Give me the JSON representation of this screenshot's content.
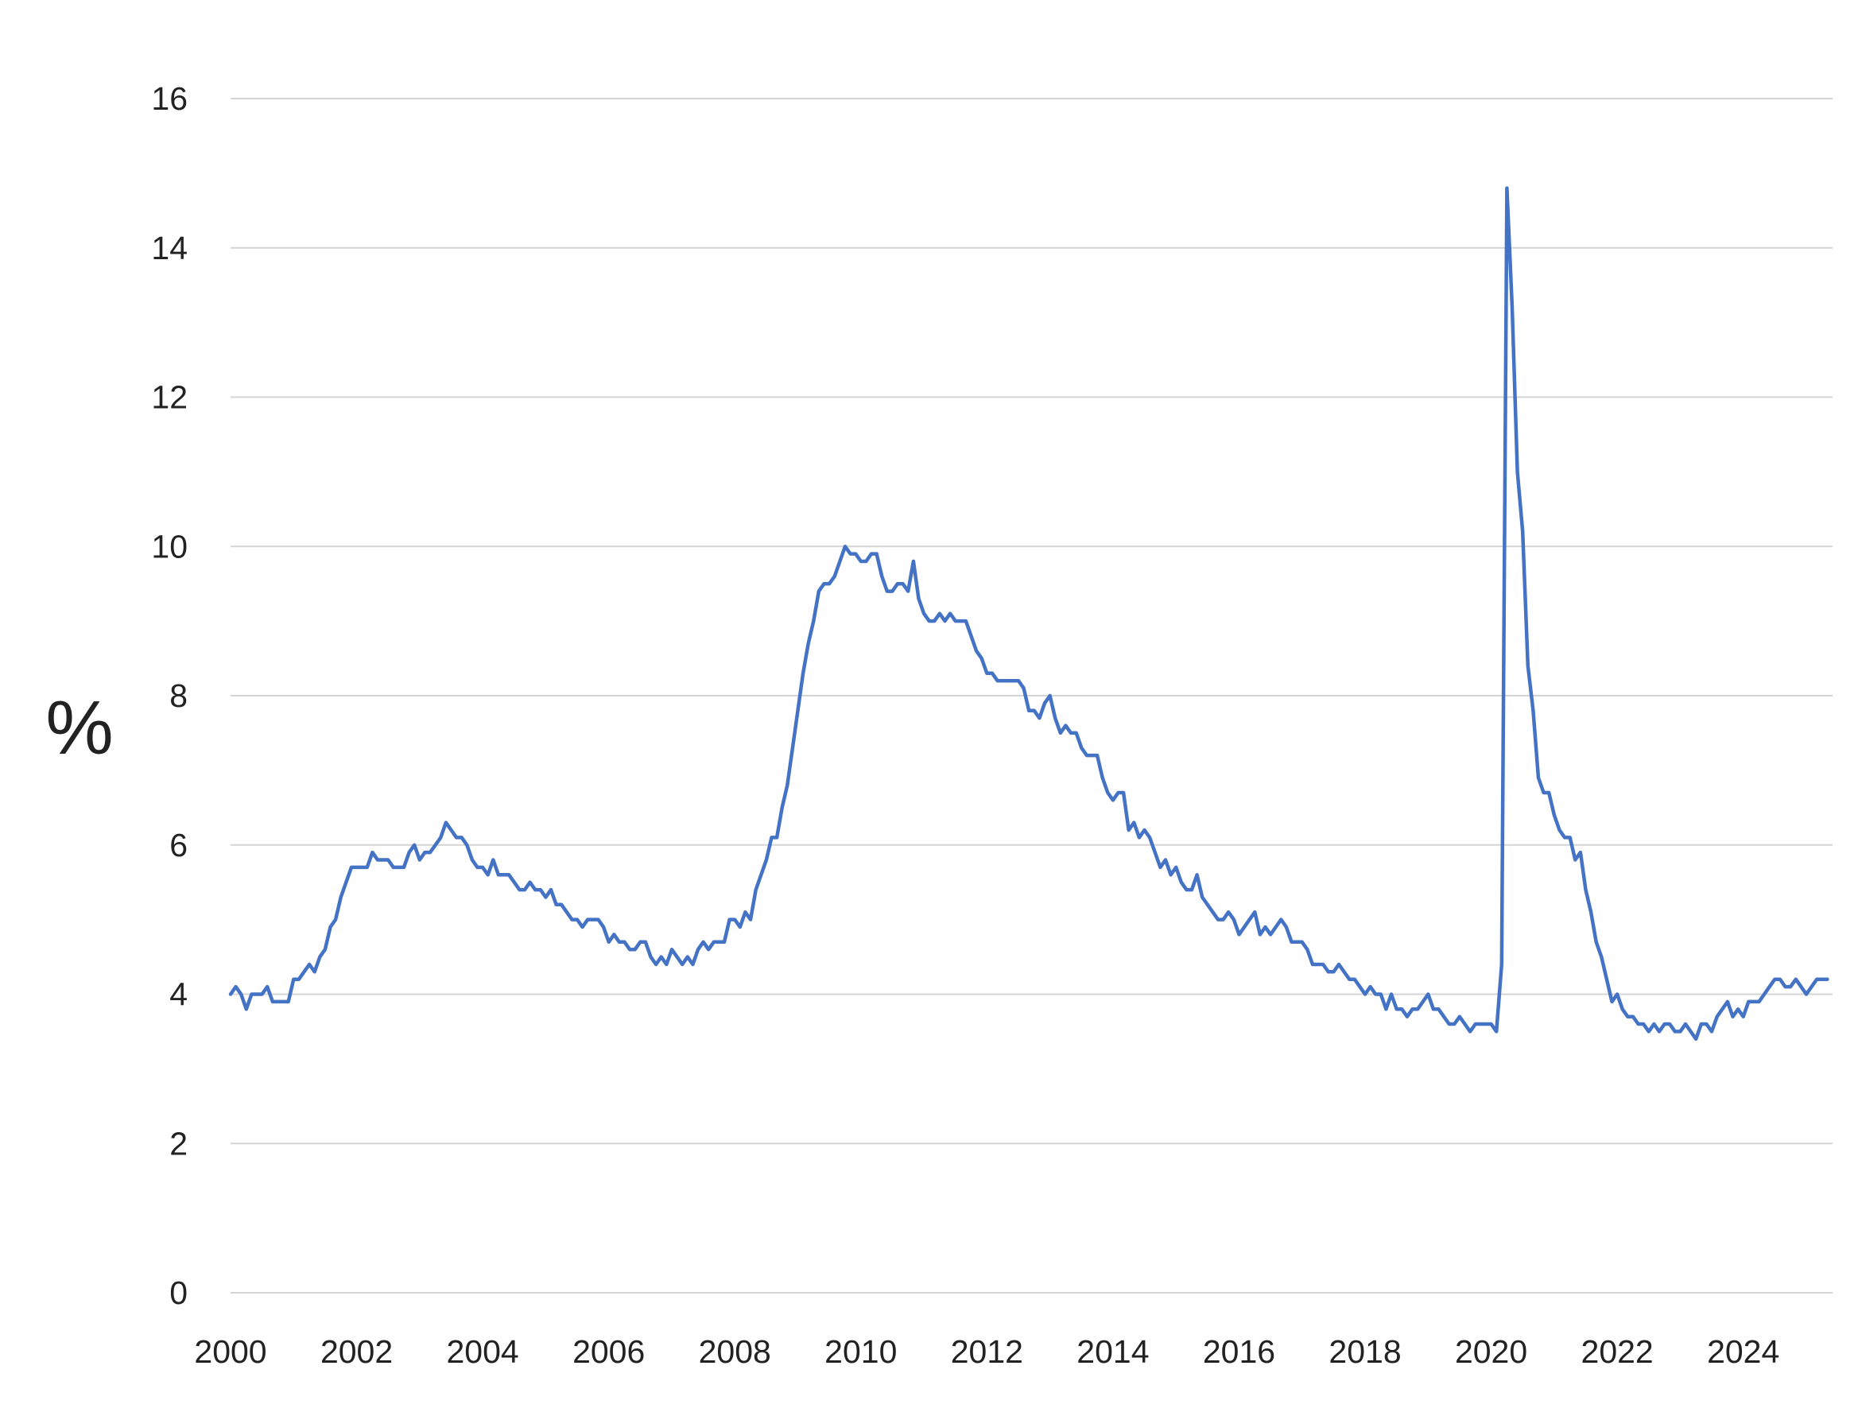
{
  "chart_data": {
    "type": "line",
    "ylabel": "%",
    "xlabel": "",
    "ylim": [
      0,
      16
    ],
    "xlim": [
      "2000-01",
      "2025-06"
    ],
    "yticks": [
      0,
      2,
      4,
      6,
      8,
      10,
      12,
      14,
      16
    ],
    "xticks": [
      "2000",
      "2002",
      "2004",
      "2006",
      "2008",
      "2010",
      "2012",
      "2014",
      "2016",
      "2018",
      "2020",
      "2022",
      "2024"
    ],
    "grid": "horizontal",
    "series_color": "#4472c4",
    "x_start": "2000-01",
    "frequency": "monthly",
    "series": [
      {
        "values": [
          4.0,
          4.1,
          4.0,
          3.8,
          4.0,
          4.0,
          4.0,
          4.1,
          3.9,
          3.9,
          3.9,
          3.9,
          4.2,
          4.2,
          4.3,
          4.4,
          4.3,
          4.5,
          4.6,
          4.9,
          5.0,
          5.3,
          5.5,
          5.7,
          5.7,
          5.7,
          5.7,
          5.9,
          5.8,
          5.8,
          5.8,
          5.7,
          5.7,
          5.7,
          5.9,
          6.0,
          5.8,
          5.9,
          5.9,
          6.0,
          6.1,
          6.3,
          6.2,
          6.1,
          6.1,
          6.0,
          5.8,
          5.7,
          5.7,
          5.6,
          5.8,
          5.6,
          5.6,
          5.6,
          5.5,
          5.4,
          5.4,
          5.5,
          5.4,
          5.4,
          5.3,
          5.4,
          5.2,
          5.2,
          5.1,
          5.0,
          5.0,
          4.9,
          5.0,
          5.0,
          5.0,
          4.9,
          4.7,
          4.8,
          4.7,
          4.7,
          4.6,
          4.6,
          4.7,
          4.7,
          4.5,
          4.4,
          4.5,
          4.4,
          4.6,
          4.5,
          4.4,
          4.5,
          4.4,
          4.6,
          4.7,
          4.6,
          4.7,
          4.7,
          4.7,
          5.0,
          5.0,
          4.9,
          5.1,
          5.0,
          5.4,
          5.6,
          5.8,
          6.1,
          6.1,
          6.5,
          6.8,
          7.3,
          7.8,
          8.3,
          8.7,
          9.0,
          9.4,
          9.5,
          9.5,
          9.6,
          9.8,
          10.0,
          9.9,
          9.9,
          9.8,
          9.8,
          9.9,
          9.9,
          9.6,
          9.4,
          9.4,
          9.5,
          9.5,
          9.4,
          9.8,
          9.3,
          9.1,
          9.0,
          9.0,
          9.1,
          9.0,
          9.1,
          9.0,
          9.0,
          9.0,
          8.8,
          8.6,
          8.5,
          8.3,
          8.3,
          8.2,
          8.2,
          8.2,
          8.2,
          8.2,
          8.1,
          7.8,
          7.8,
          7.7,
          7.9,
          8.0,
          7.7,
          7.5,
          7.6,
          7.5,
          7.5,
          7.3,
          7.2,
          7.2,
          7.2,
          6.9,
          6.7,
          6.6,
          6.7,
          6.7,
          6.2,
          6.3,
          6.1,
          6.2,
          6.1,
          5.9,
          5.7,
          5.8,
          5.6,
          5.7,
          5.5,
          5.4,
          5.4,
          5.6,
          5.3,
          5.2,
          5.1,
          5.0,
          5.0,
          5.1,
          5.0,
          4.8,
          4.9,
          5.0,
          5.1,
          4.8,
          4.9,
          4.8,
          4.9,
          5.0,
          4.9,
          4.7,
          4.7,
          4.7,
          4.6,
          4.4,
          4.4,
          4.4,
          4.3,
          4.3,
          4.4,
          4.3,
          4.2,
          4.2,
          4.1,
          4.0,
          4.1,
          4.0,
          4.0,
          3.8,
          4.0,
          3.8,
          3.8,
          3.7,
          3.8,
          3.8,
          3.9,
          4.0,
          3.8,
          3.8,
          3.7,
          3.6,
          3.6,
          3.7,
          3.6,
          3.5,
          3.6,
          3.6,
          3.6,
          3.6,
          3.5,
          4.4,
          14.8,
          13.2,
          11.0,
          10.2,
          8.4,
          7.8,
          6.9,
          6.7,
          6.7,
          6.4,
          6.2,
          6.1,
          6.1,
          5.8,
          5.9,
          5.4,
          5.1,
          4.7,
          4.5,
          4.2,
          3.9,
          4.0,
          3.8,
          3.7,
          3.7,
          3.6,
          3.6,
          3.5,
          3.6,
          3.5,
          3.6,
          3.6,
          3.5,
          3.5,
          3.6,
          3.5,
          3.4,
          3.6,
          3.6,
          3.5,
          3.7,
          3.8,
          3.9,
          3.7,
          3.8,
          3.7,
          3.9,
          3.9,
          3.9,
          4.0,
          4.1,
          4.2,
          4.2,
          4.1,
          4.1,
          4.2,
          4.1,
          4.0,
          4.1,
          4.2,
          4.2,
          4.2
        ]
      }
    ]
  }
}
